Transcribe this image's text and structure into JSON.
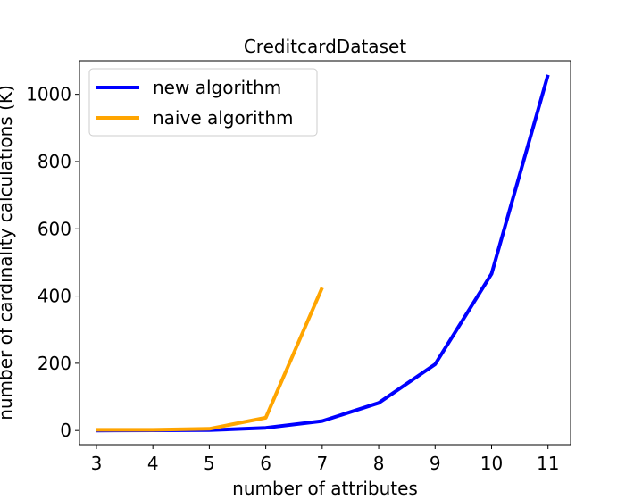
{
  "chart_data": {
    "type": "line",
    "title": "CreditcardDataset",
    "xlabel": "number of attributes",
    "ylabel": "number of cardinality calculations (K)",
    "xlim": [
      2.7,
      11.4
    ],
    "ylim": [
      -42,
      1100
    ],
    "x_ticks": [
      3,
      4,
      5,
      6,
      7,
      8,
      9,
      10,
      11
    ],
    "y_ticks": [
      0,
      200,
      400,
      600,
      800,
      1000
    ],
    "grid": false,
    "legend_position": "upper-left",
    "series": [
      {
        "name": "new algorithm",
        "color": "#0000ff",
        "x": [
          3,
          4,
          5,
          6,
          7,
          8,
          9,
          10,
          11
        ],
        "y": [
          0,
          0.5,
          1,
          8,
          28,
          82,
          197,
          466,
          1058
        ]
      },
      {
        "name": "naive algorithm",
        "color": "#ffa500",
        "x": [
          3,
          4,
          5,
          6,
          7
        ],
        "y": [
          2,
          2,
          5,
          38,
          425
        ]
      }
    ]
  }
}
